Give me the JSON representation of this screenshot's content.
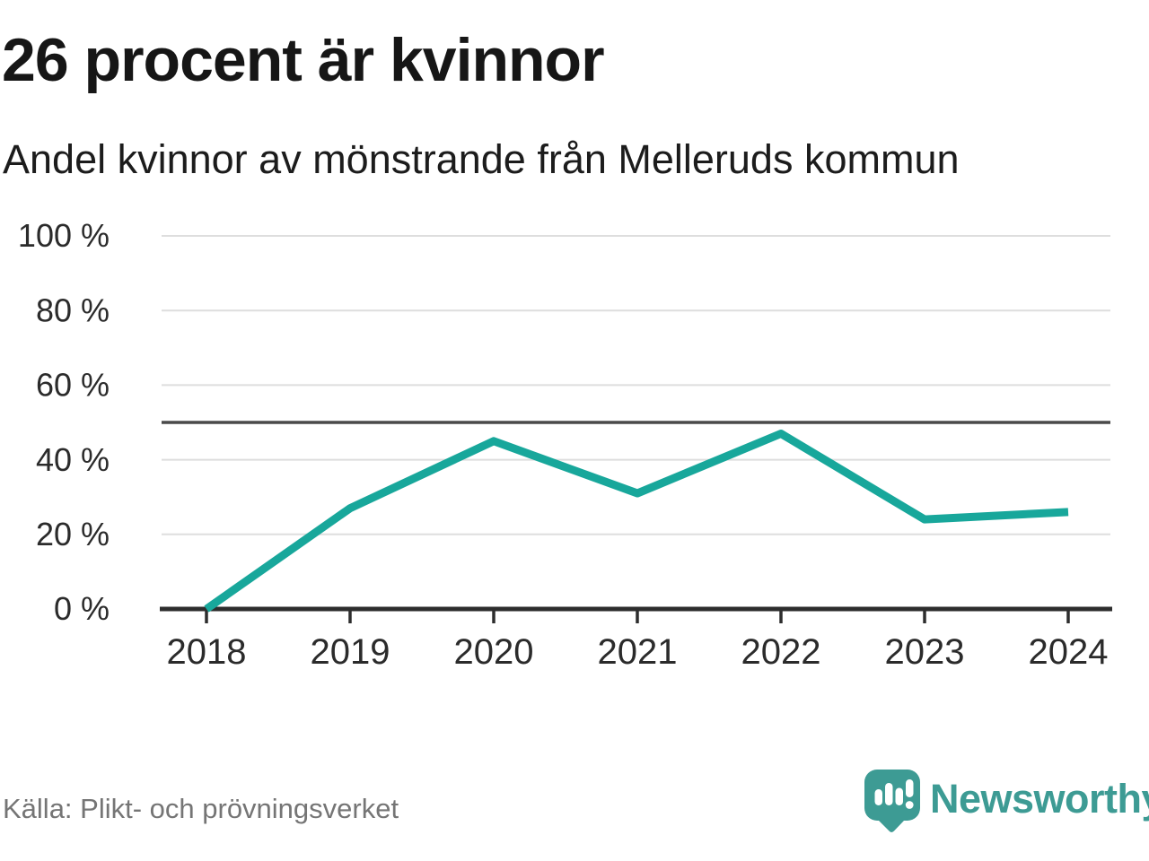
{
  "header": {
    "title": "26 procent är kvinnor",
    "subtitle": "Andel kvinnor av mönstrande från Melleruds kommun"
  },
  "chart_data": {
    "type": "line",
    "title": "26 procent är kvinnor",
    "subtitle": "Andel kvinnor av mönstrande från Melleruds kommun",
    "categories": [
      "2018",
      "2019",
      "2020",
      "2021",
      "2022",
      "2023",
      "2024"
    ],
    "series": [
      {
        "name": "Andel kvinnor av mönstrande",
        "values": [
          0,
          27,
          45,
          31,
          47,
          24,
          26
        ]
      }
    ],
    "xlabel": "",
    "ylabel": "",
    "ylim": [
      0,
      100
    ],
    "yticks": [
      {
        "value": 0,
        "label": "0 %"
      },
      {
        "value": 20,
        "label": "20 %"
      },
      {
        "value": 40,
        "label": "40 %"
      },
      {
        "value": 60,
        "label": "60 %"
      },
      {
        "value": 80,
        "label": "80 %"
      },
      {
        "value": 100,
        "label": "100 %"
      }
    ],
    "reference_line": 50,
    "grid": "horizontal",
    "legend": "none",
    "line_color": "#18a79b",
    "reference_line_color": "#4a4a4a",
    "axis_color": "#2d2d2d",
    "gridline_color": "#dedede",
    "tick_label_color": "#2b2b2b"
  },
  "footer": {
    "source": "Källa: Plikt- och prövningsverket",
    "logo_text": "Newsworthy",
    "logo_color": "#3d9b94"
  }
}
